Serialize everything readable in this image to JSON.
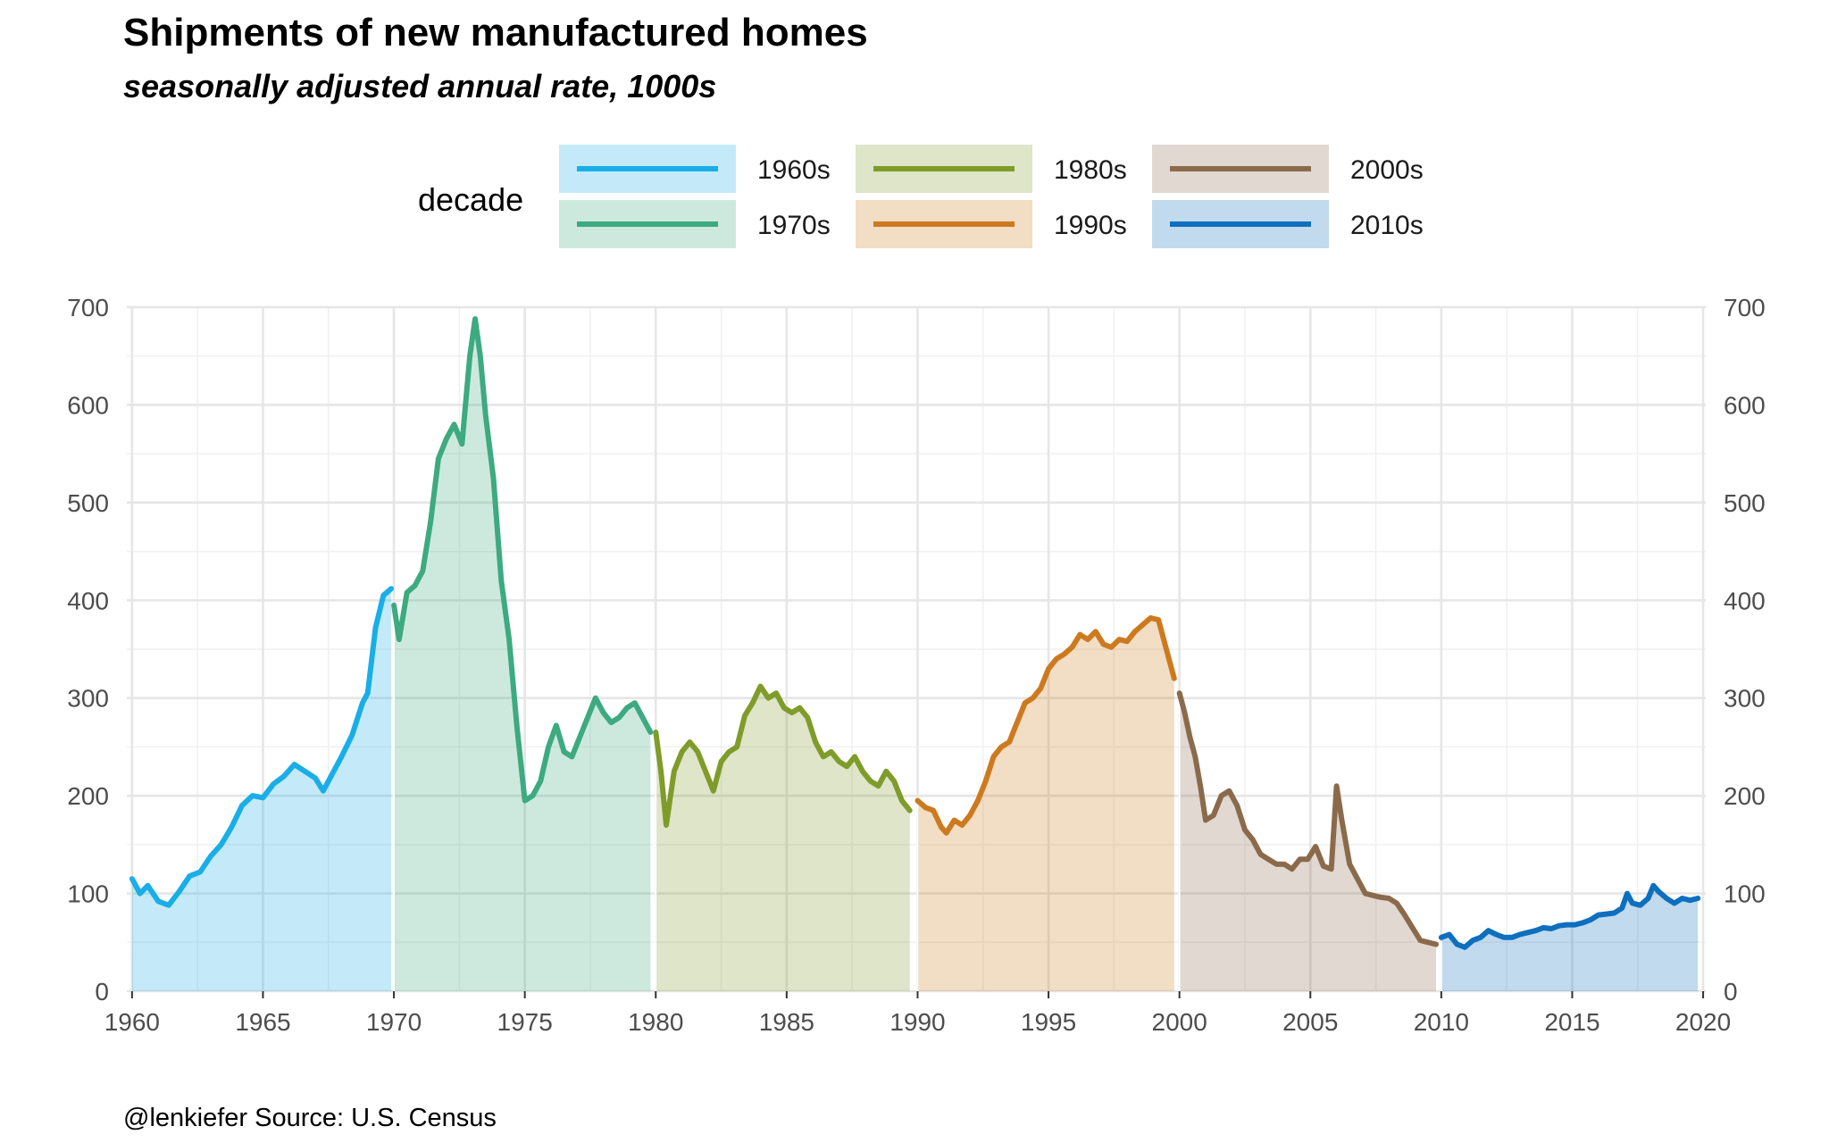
{
  "chart_data": {
    "type": "area",
    "title": "Shipments of new manufactured homes",
    "subtitle": "seasonally adjusted annual rate, 1000s",
    "caption": "@lenkiefer Source: U.S. Census",
    "xlabel": "",
    "ylabel": "",
    "xlim": [
      1959.8,
      2020.1
    ],
    "ylim": [
      0,
      700
    ],
    "x_ticks": [
      1960,
      1965,
      1970,
      1975,
      1980,
      1985,
      1990,
      1995,
      2000,
      2005,
      2010,
      2015,
      2020
    ],
    "y_ticks": [
      0,
      100,
      200,
      300,
      400,
      500,
      600,
      700
    ],
    "grid": true,
    "legend": {
      "title": "decade",
      "position": "top"
    },
    "series": [
      {
        "name": "1960s",
        "color": "#1aaee8",
        "x": [
          1960.0,
          1960.3,
          1960.6,
          1961.0,
          1961.4,
          1961.8,
          1962.2,
          1962.6,
          1963.0,
          1963.4,
          1963.8,
          1964.2,
          1964.6,
          1965.0,
          1965.4,
          1965.8,
          1966.2,
          1966.6,
          1967.0,
          1967.3,
          1967.7,
          1968.0,
          1968.4,
          1968.8,
          1969.0,
          1969.3,
          1969.6,
          1969.9
        ],
        "y": [
          115,
          100,
          108,
          92,
          88,
          102,
          118,
          122,
          138,
          150,
          168,
          190,
          200,
          198,
          212,
          220,
          232,
          225,
          218,
          205,
          225,
          240,
          262,
          295,
          305,
          372,
          405,
          412
        ]
      },
      {
        "name": "1970s",
        "color": "#3daa80",
        "x": [
          1970.0,
          1970.2,
          1970.5,
          1970.8,
          1971.1,
          1971.4,
          1971.7,
          1972.0,
          1972.3,
          1972.6,
          1972.9,
          1973.1,
          1973.3,
          1973.5,
          1973.8,
          1974.1,
          1974.4,
          1974.7,
          1975.0,
          1975.3,
          1975.6,
          1975.9,
          1976.2,
          1976.5,
          1976.8,
          1977.1,
          1977.4,
          1977.7,
          1978.0,
          1978.3,
          1978.6,
          1978.9,
          1979.2,
          1979.5,
          1979.8
        ],
        "y": [
          395,
          360,
          408,
          415,
          430,
          480,
          545,
          565,
          580,
          560,
          650,
          688,
          650,
          590,
          525,
          420,
          360,
          270,
          195,
          200,
          215,
          250,
          272,
          245,
          240,
          260,
          280,
          300,
          285,
          275,
          280,
          290,
          295,
          280,
          265
        ]
      },
      {
        "name": "1980s",
        "color": "#7f9c2a",
        "x": [
          1980.0,
          1980.2,
          1980.4,
          1980.7,
          1981.0,
          1981.3,
          1981.6,
          1981.9,
          1982.2,
          1982.5,
          1982.8,
          1983.1,
          1983.4,
          1983.7,
          1984.0,
          1984.3,
          1984.6,
          1984.9,
          1985.2,
          1985.5,
          1985.8,
          1986.1,
          1986.4,
          1986.7,
          1987.0,
          1987.3,
          1987.6,
          1987.9,
          1988.2,
          1988.5,
          1988.8,
          1989.1,
          1989.4,
          1989.7
        ],
        "y": [
          265,
          225,
          170,
          225,
          245,
          255,
          245,
          225,
          205,
          235,
          245,
          250,
          282,
          295,
          312,
          300,
          305,
          290,
          285,
          290,
          280,
          255,
          240,
          245,
          235,
          230,
          240,
          225,
          215,
          210,
          225,
          215,
          195,
          185
        ]
      },
      {
        "name": "1990s",
        "color": "#cd7a1f",
        "x": [
          1990.0,
          1990.3,
          1990.6,
          1990.9,
          1991.1,
          1991.4,
          1991.7,
          1992.0,
          1992.3,
          1992.6,
          1992.9,
          1993.2,
          1993.5,
          1993.8,
          1994.1,
          1994.4,
          1994.7,
          1995.0,
          1995.3,
          1995.6,
          1995.9,
          1996.2,
          1996.5,
          1996.8,
          1997.1,
          1997.4,
          1997.7,
          1998.0,
          1998.3,
          1998.6,
          1998.9,
          1999.2,
          1999.5,
          1999.8
        ],
        "y": [
          195,
          188,
          185,
          168,
          162,
          175,
          170,
          180,
          195,
          215,
          240,
          250,
          255,
          275,
          295,
          300,
          310,
          330,
          340,
          345,
          352,
          365,
          360,
          368,
          355,
          352,
          360,
          358,
          368,
          375,
          382,
          380,
          350,
          320
        ]
      },
      {
        "name": "2000s",
        "color": "#8b6a4c",
        "x": [
          2000.0,
          2000.2,
          2000.4,
          2000.6,
          2000.8,
          2001.0,
          2001.3,
          2001.6,
          2001.9,
          2002.2,
          2002.5,
          2002.8,
          2003.1,
          2003.4,
          2003.7,
          2004.0,
          2004.3,
          2004.6,
          2004.9,
          2005.2,
          2005.5,
          2005.8,
          2006.0,
          2006.2,
          2006.5,
          2006.8,
          2007.1,
          2007.4,
          2007.7,
          2008.0,
          2008.3,
          2008.6,
          2008.9,
          2009.2,
          2009.5,
          2009.8
        ],
        "y": [
          305,
          285,
          260,
          240,
          210,
          175,
          180,
          200,
          205,
          190,
          165,
          155,
          140,
          135,
          130,
          130,
          125,
          135,
          135,
          148,
          128,
          125,
          210,
          175,
          130,
          115,
          100,
          98,
          96,
          95,
          90,
          78,
          65,
          52,
          50,
          48
        ]
      },
      {
        "name": "2010s",
        "color": "#0e6fbf",
        "x": [
          2010.0,
          2010.3,
          2010.6,
          2010.9,
          2011.2,
          2011.5,
          2011.8,
          2012.1,
          2012.4,
          2012.7,
          2013.0,
          2013.3,
          2013.6,
          2013.9,
          2014.2,
          2014.5,
          2014.8,
          2015.1,
          2015.4,
          2015.7,
          2016.0,
          2016.3,
          2016.6,
          2016.9,
          2017.1,
          2017.3,
          2017.6,
          2017.9,
          2018.1,
          2018.3,
          2018.6,
          2018.9,
          2019.2,
          2019.5,
          2019.8
        ],
        "y": [
          55,
          58,
          48,
          45,
          52,
          55,
          62,
          58,
          55,
          55,
          58,
          60,
          62,
          65,
          64,
          67,
          68,
          68,
          70,
          73,
          78,
          79,
          80,
          85,
          100,
          90,
          88,
          95,
          108,
          102,
          95,
          90,
          95,
          93,
          95
        ]
      }
    ]
  }
}
